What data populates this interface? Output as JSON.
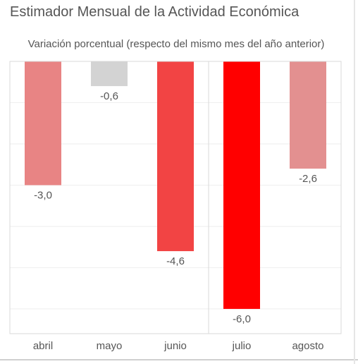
{
  "title": "Estimador Mensual de la Actividad Económica",
  "subtitle": "Variación porcentual (respecto del mismo mes del año anterior)",
  "chart_data": {
    "type": "bar",
    "orientation": "vertical",
    "categories": [
      "abril",
      "mayo",
      "junio",
      "julio",
      "agosto"
    ],
    "values": [
      -3.0,
      -0.6,
      -4.6,
      -6.0,
      -2.6
    ],
    "value_labels": [
      "-3,0",
      "-0,6",
      "-4,6",
      "-6,0",
      "-2,6"
    ],
    "colors": [
      "#e88484",
      "#d3d3d3",
      "#f24444",
      "#ff0000",
      "#e39090"
    ],
    "ylim": [
      -6.6,
      0
    ],
    "grid": true,
    "highlight_divider_after": "junio",
    "xlabel": "",
    "ylabel": ""
  }
}
